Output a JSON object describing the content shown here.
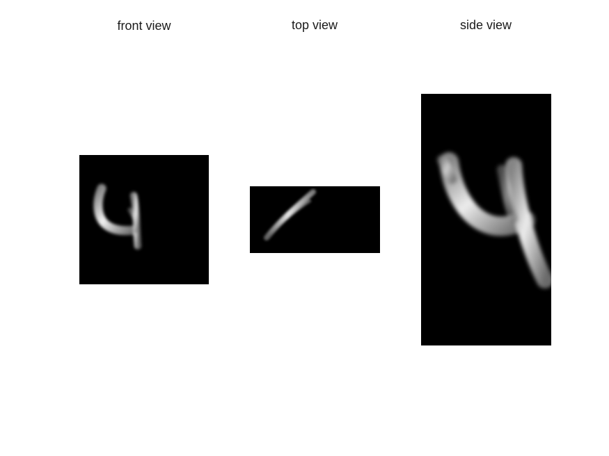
{
  "panels": [
    {
      "id": "front",
      "title": "front view"
    },
    {
      "id": "top",
      "title": "top view"
    },
    {
      "id": "side",
      "title": "side view"
    }
  ],
  "colors": {
    "background": "#ffffff",
    "image_background": "#000000",
    "title_text": "#1a1a1a"
  }
}
